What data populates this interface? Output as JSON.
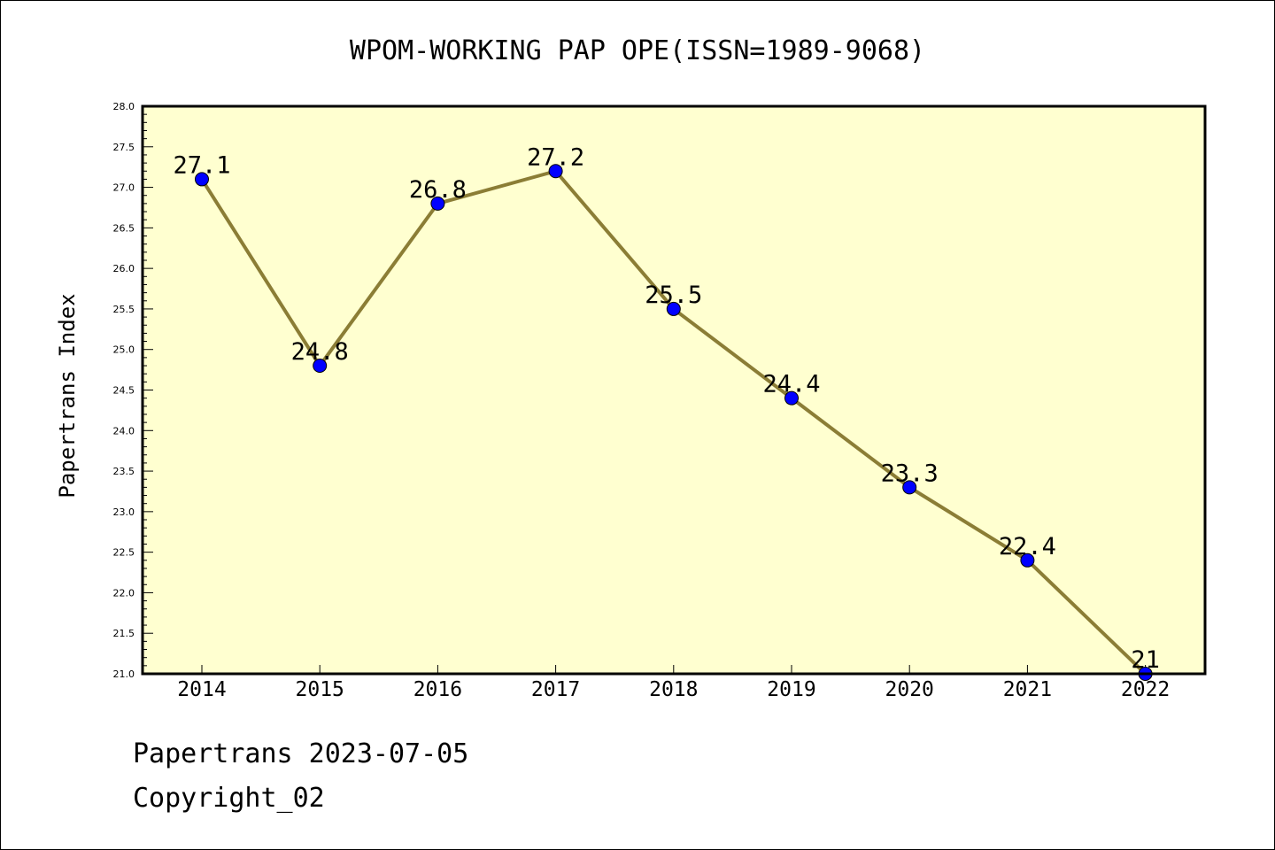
{
  "chart_data": {
    "type": "line",
    "title": "WPOM-WORKING PAP OPE(ISSN=1989-9068)",
    "xlabel": "",
    "ylabel": "Papertrans Index",
    "categories": [
      "2014",
      "2015",
      "2016",
      "2017",
      "2018",
      "2019",
      "2020",
      "2021",
      "2022"
    ],
    "series": [
      {
        "values": [
          27.1,
          24.8,
          26.8,
          27.2,
          25.5,
          24.4,
          23.3,
          22.4,
          21
        ],
        "labels": [
          "27.1",
          "24.8",
          "26.8",
          "27.2",
          "25.5",
          "24.4",
          "23.3",
          "22.4",
          "21"
        ],
        "line_color": "#8b7d35",
        "marker_color": "#0000ff"
      }
    ],
    "ylim": [
      21.0,
      28.0
    ],
    "yticks": [
      "21.0",
      "21.5",
      "22.0",
      "22.5",
      "23.0",
      "23.5",
      "24.0",
      "24.5",
      "25.0",
      "25.5",
      "26.0",
      "26.5",
      "27.0",
      "27.5",
      "28.0"
    ],
    "grid": false,
    "plot_background": "#ffffd0"
  },
  "footer": {
    "line1": "Papertrans 2023-07-05",
    "line2": "Copyright_02"
  }
}
